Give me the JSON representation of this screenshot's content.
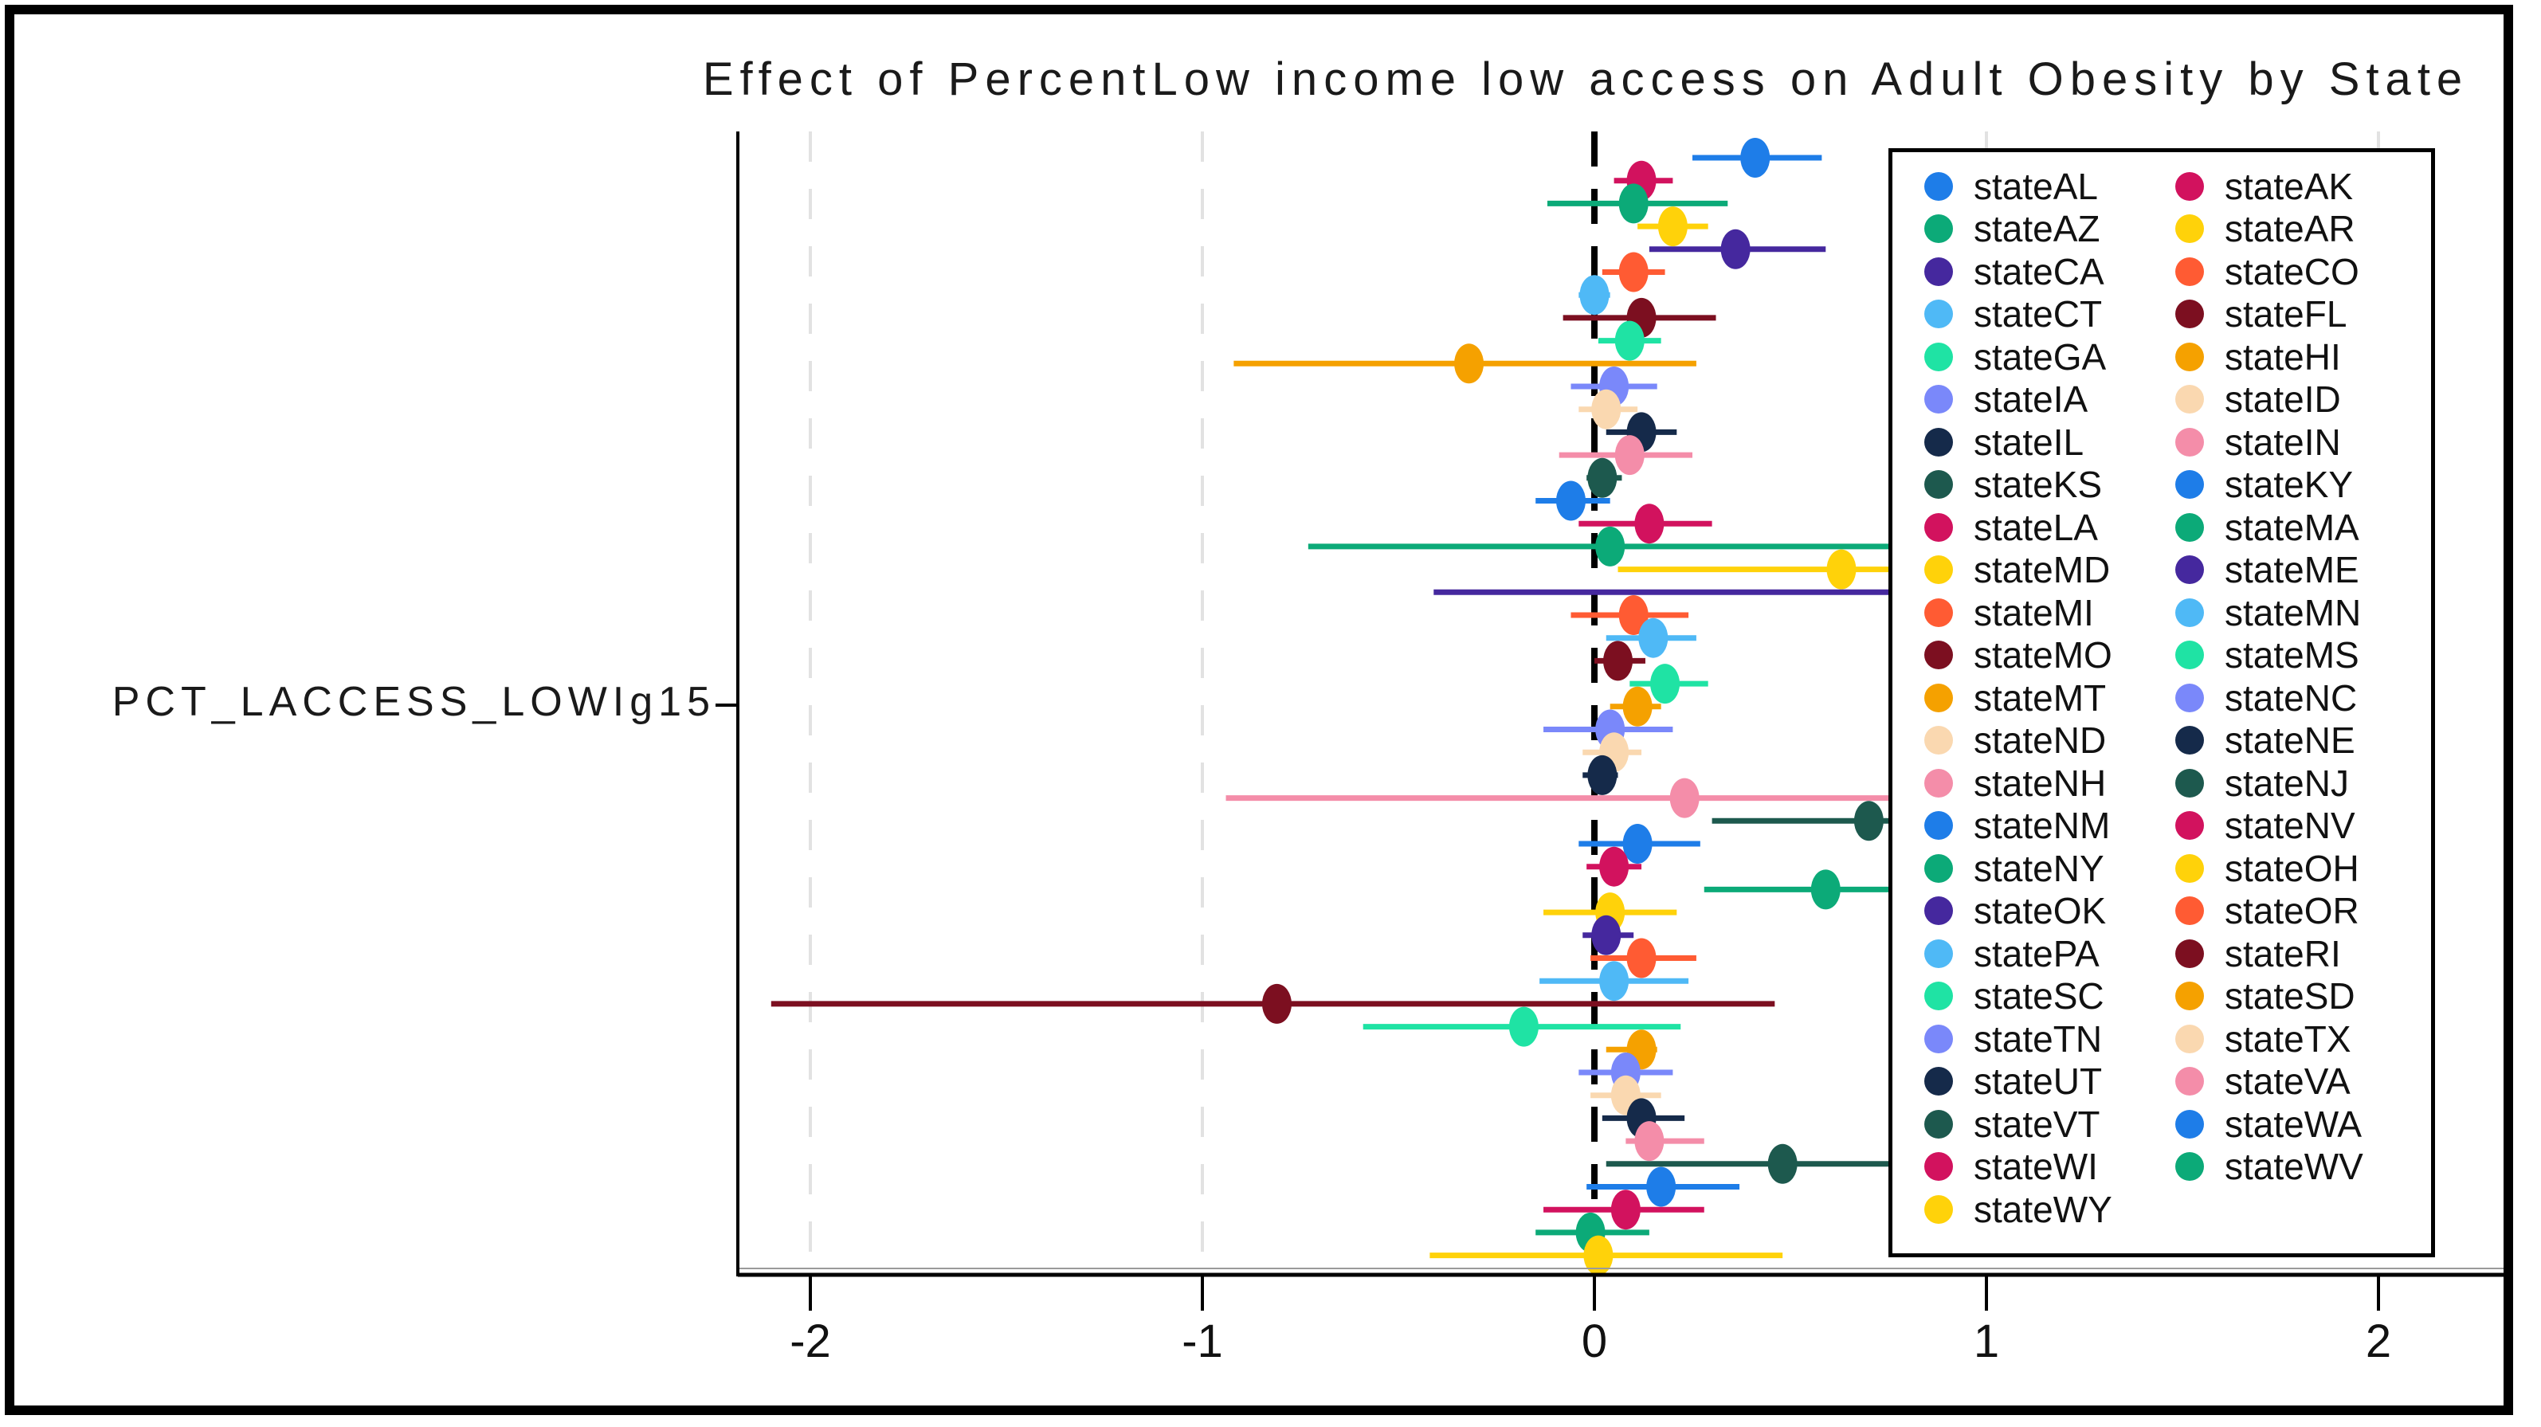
{
  "chart_data": {
    "type": "scatter",
    "subtype": "forest-coefficient-plot",
    "title": "Effect of PercentLow income low access on Adult Obesity by State",
    "xlabel": "",
    "ylabel": "PCT_LACCESS_LOWIg15",
    "x_ticks": [
      -2,
      -1,
      0,
      1,
      2
    ],
    "xlim": [
      -2.19,
      2.33
    ],
    "reference_line_x": 0,
    "gridline_x": [
      -2,
      -1,
      1,
      2
    ],
    "grid": "vertical-dashed-light-grey",
    "legend_position": "inside-right-overlapping-plot",
    "legend_note": "confidence intervals extending beyond x≈0.75 are hidden behind the opaque legend box",
    "series": [
      {
        "name": "stateAL",
        "color": "#1E7DE8",
        "estimate": 0.41,
        "ci": [
          0.25,
          0.58
        ],
        "clipped": false
      },
      {
        "name": "stateAK",
        "color": "#D2125E",
        "estimate": 0.12,
        "ci": [
          0.05,
          0.2
        ],
        "clipped": false
      },
      {
        "name": "stateAZ",
        "color": "#0CAA78",
        "estimate": 0.1,
        "ci": [
          -0.12,
          0.34
        ],
        "clipped": false
      },
      {
        "name": "stateAR",
        "color": "#FFD20A",
        "estimate": 0.2,
        "ci": [
          0.11,
          0.29
        ],
        "clipped": false
      },
      {
        "name": "stateCA",
        "color": "#45289E",
        "estimate": 0.36,
        "ci": [
          0.14,
          0.59
        ],
        "clipped": false
      },
      {
        "name": "stateCO",
        "color": "#FF5B33",
        "estimate": 0.1,
        "ci": [
          0.02,
          0.18
        ],
        "clipped": false
      },
      {
        "name": "stateCT",
        "color": "#4FB9F6",
        "estimate": 0.0,
        "ci": [
          -0.04,
          0.04
        ],
        "clipped": false
      },
      {
        "name": "stateFL",
        "color": "#7C0F20",
        "estimate": 0.12,
        "ci": [
          -0.08,
          0.31
        ],
        "clipped": false
      },
      {
        "name": "stateGA",
        "color": "#1FE3A4",
        "estimate": 0.09,
        "ci": [
          0.01,
          0.17
        ],
        "clipped": false
      },
      {
        "name": "stateHI",
        "color": "#F5A100",
        "estimate": -0.32,
        "ci": [
          -0.92,
          0.26
        ],
        "clipped": false
      },
      {
        "name": "stateIA",
        "color": "#7A88FA",
        "estimate": 0.05,
        "ci": [
          -0.06,
          0.16
        ],
        "clipped": false
      },
      {
        "name": "stateID",
        "color": "#FAD8B0",
        "estimate": 0.03,
        "ci": [
          -0.04,
          0.11
        ],
        "clipped": false
      },
      {
        "name": "stateIL",
        "color": "#152A4A",
        "estimate": 0.12,
        "ci": [
          0.03,
          0.21
        ],
        "clipped": false
      },
      {
        "name": "stateIN",
        "color": "#F48DA9",
        "estimate": 0.09,
        "ci": [
          -0.09,
          0.25
        ],
        "clipped": false
      },
      {
        "name": "stateKS",
        "color": "#1D594E",
        "estimate": 0.02,
        "ci": [
          -0.02,
          0.07
        ],
        "clipped": false
      },
      {
        "name": "stateKY",
        "color": "#1E7DE8",
        "estimate": -0.06,
        "ci": [
          -0.15,
          0.04
        ],
        "clipped": false
      },
      {
        "name": "stateLA",
        "color": "#D2125E",
        "estimate": 0.14,
        "ci": [
          -0.04,
          0.3
        ],
        "clipped": false
      },
      {
        "name": "stateMA",
        "color": "#0CAA78",
        "estimate": 0.04,
        "ci": [
          -0.73,
          0.78
        ],
        "clipped": true
      },
      {
        "name": "stateMD",
        "color": "#FFD20A",
        "estimate": 0.63,
        "ci": [
          0.06,
          0.78
        ],
        "clipped": true
      },
      {
        "name": "stateME",
        "color": "#45289E",
        "estimate": null,
        "ci": [
          -0.41,
          0.78
        ],
        "clipped": true
      },
      {
        "name": "stateMI",
        "color": "#FF5B33",
        "estimate": 0.1,
        "ci": [
          -0.06,
          0.24
        ],
        "clipped": false
      },
      {
        "name": "stateMN",
        "color": "#4FB9F6",
        "estimate": 0.15,
        "ci": [
          0.03,
          0.26
        ],
        "clipped": false
      },
      {
        "name": "stateMO",
        "color": "#7C0F20",
        "estimate": 0.06,
        "ci": [
          0.0,
          0.13
        ],
        "clipped": false
      },
      {
        "name": "stateMS",
        "color": "#1FE3A4",
        "estimate": 0.18,
        "ci": [
          0.09,
          0.29
        ],
        "clipped": false
      },
      {
        "name": "stateMT",
        "color": "#F5A100",
        "estimate": 0.11,
        "ci": [
          0.04,
          0.17
        ],
        "clipped": false
      },
      {
        "name": "stateNC",
        "color": "#7A88FA",
        "estimate": 0.04,
        "ci": [
          -0.13,
          0.2
        ],
        "clipped": false
      },
      {
        "name": "stateND",
        "color": "#FAD8B0",
        "estimate": 0.05,
        "ci": [
          -0.03,
          0.12
        ],
        "clipped": false
      },
      {
        "name": "stateNE",
        "color": "#152A4A",
        "estimate": 0.02,
        "ci": [
          -0.03,
          0.06
        ],
        "clipped": false
      },
      {
        "name": "stateNH",
        "color": "#F48DA9",
        "estimate": 0.23,
        "ci": [
          -0.94,
          0.78
        ],
        "clipped": true
      },
      {
        "name": "stateNJ",
        "color": "#1D594E",
        "estimate": 0.7,
        "ci": [
          0.3,
          0.78
        ],
        "clipped": true
      },
      {
        "name": "stateNM",
        "color": "#1E7DE8",
        "estimate": 0.11,
        "ci": [
          -0.04,
          0.27
        ],
        "clipped": false
      },
      {
        "name": "stateNV",
        "color": "#D2125E",
        "estimate": 0.05,
        "ci": [
          -0.02,
          0.12
        ],
        "clipped": false
      },
      {
        "name": "stateNY",
        "color": "#0CAA78",
        "estimate": 0.59,
        "ci": [
          0.28,
          0.78
        ],
        "clipped": true
      },
      {
        "name": "stateOH",
        "color": "#FFD20A",
        "estimate": 0.04,
        "ci": [
          -0.13,
          0.21
        ],
        "clipped": false
      },
      {
        "name": "stateOK",
        "color": "#45289E",
        "estimate": 0.03,
        "ci": [
          -0.03,
          0.1
        ],
        "clipped": false
      },
      {
        "name": "stateOR",
        "color": "#FF5B33",
        "estimate": 0.12,
        "ci": [
          -0.01,
          0.26
        ],
        "clipped": false
      },
      {
        "name": "statePA",
        "color": "#4FB9F6",
        "estimate": 0.05,
        "ci": [
          -0.14,
          0.24
        ],
        "clipped": false
      },
      {
        "name": "stateRI",
        "color": "#7C0F20",
        "estimate": -0.81,
        "ci": [
          -2.1,
          0.46
        ],
        "clipped": false
      },
      {
        "name": "stateSC",
        "color": "#1FE3A4",
        "estimate": -0.18,
        "ci": [
          -0.59,
          0.22
        ],
        "clipped": false
      },
      {
        "name": "stateSD",
        "color": "#F5A100",
        "estimate": 0.12,
        "ci": [
          0.03,
          0.16
        ],
        "clipped": false
      },
      {
        "name": "stateTN",
        "color": "#7A88FA",
        "estimate": 0.08,
        "ci": [
          -0.04,
          0.2
        ],
        "clipped": false
      },
      {
        "name": "stateTX",
        "color": "#FAD8B0",
        "estimate": 0.08,
        "ci": [
          -0.01,
          0.17
        ],
        "clipped": false
      },
      {
        "name": "stateUT",
        "color": "#152A4A",
        "estimate": 0.12,
        "ci": [
          0.02,
          0.23
        ],
        "clipped": false
      },
      {
        "name": "stateVA",
        "color": "#F48DA9",
        "estimate": 0.14,
        "ci": [
          0.08,
          0.28
        ],
        "clipped": false
      },
      {
        "name": "stateVT",
        "color": "#1D594E",
        "estimate": 0.48,
        "ci": [
          0.03,
          0.78
        ],
        "clipped": true
      },
      {
        "name": "stateWA",
        "color": "#1E7DE8",
        "estimate": 0.17,
        "ci": [
          -0.02,
          0.37
        ],
        "clipped": false
      },
      {
        "name": "stateWI",
        "color": "#D2125E",
        "estimate": 0.08,
        "ci": [
          -0.13,
          0.28
        ],
        "clipped": false
      },
      {
        "name": "stateWV",
        "color": "#0CAA78",
        "estimate": -0.01,
        "ci": [
          -0.15,
          0.14
        ],
        "clipped": false
      },
      {
        "name": "stateWY",
        "color": "#FFD20A",
        "estimate": 0.01,
        "ci": [
          -0.42,
          0.48
        ],
        "clipped": false
      }
    ]
  },
  "style_colors": {
    "reference_line": "#000000",
    "gridline": "#E2E2E2",
    "axis": "#000000",
    "legend_border": "#000000",
    "background": "#FFFFFF"
  }
}
